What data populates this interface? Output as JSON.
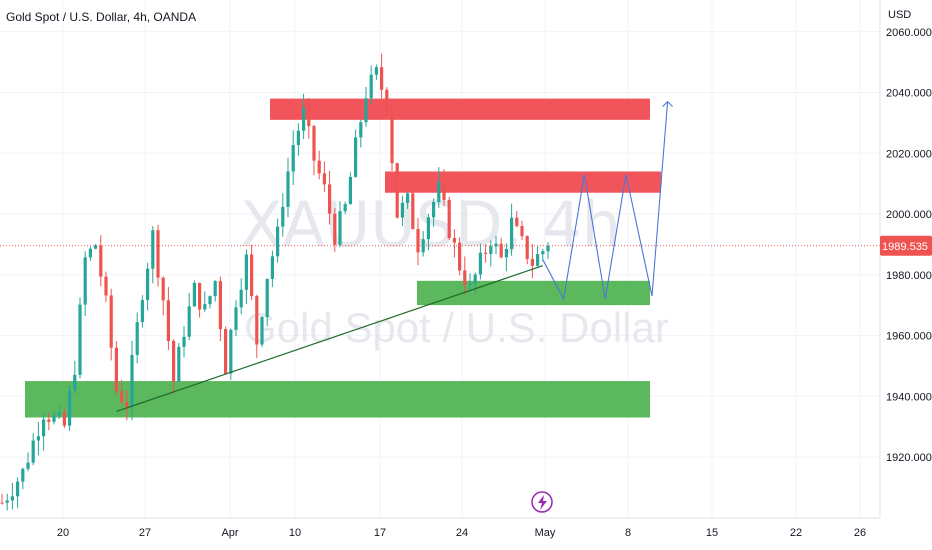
{
  "header": {
    "symbol_title": "Gold Spot / U.S. Dollar, 4h, OANDA",
    "currency": "USD"
  },
  "watermark": {
    "ticker": "XAUUSD, 4h",
    "name": "Gold Spot / U.S. Dollar"
  },
  "colors": {
    "up": "#26a69a",
    "down": "#ef5350",
    "supply_zone": "#f2545b",
    "demand_zone": "#5cb85c",
    "projection": "#4a78d6",
    "trendline": "#1e6b2a",
    "last_price_bg": "#ef5350"
  },
  "chart_data": {
    "type": "candlestick",
    "x_ticks": [
      "20",
      "27",
      "Apr",
      "10",
      "17",
      "24",
      "May",
      "8",
      "15",
      "22",
      "26"
    ],
    "y_ticks": [
      "2060.000",
      "2040.000",
      "2020.000",
      "2000.000",
      "1980.000",
      "1960.000",
      "1940.000",
      "1920.000"
    ],
    "ylim": [
      1900,
      2064
    ],
    "last_price": 1989.535,
    "last_price_label": "1989.535",
    "grid": true,
    "price_path": [
      [
        0,
        1905
      ],
      [
        4,
        1915
      ],
      [
        8,
        1935
      ],
      [
        12,
        1930
      ],
      [
        14,
        1950
      ],
      [
        16,
        1985
      ],
      [
        18,
        1990
      ],
      [
        20,
        1970
      ],
      [
        22,
        1942
      ],
      [
        24,
        1938
      ],
      [
        27,
        1975
      ],
      [
        29,
        1993
      ],
      [
        31,
        1972
      ],
      [
        33,
        1945
      ],
      [
        35,
        1962
      ],
      [
        37,
        1975
      ],
      [
        39,
        1968
      ],
      [
        41,
        1978
      ],
      [
        43,
        1950
      ],
      [
        45,
        1972
      ],
      [
        47,
        1985
      ],
      [
        49,
        1958
      ],
      [
        51,
        1980
      ],
      [
        53,
        1993
      ],
      [
        54,
        2005
      ],
      [
        56,
        2023
      ],
      [
        58,
        2033
      ],
      [
        60,
        2018
      ],
      [
        62,
        2008
      ],
      [
        64,
        1993
      ],
      [
        66,
        2002
      ],
      [
        68,
        2022
      ],
      [
        70,
        2040
      ],
      [
        72,
        2046
      ],
      [
        74,
        2037
      ],
      [
        76,
        2000
      ],
      [
        78,
        2004
      ],
      [
        80,
        1990
      ],
      [
        82,
        2000
      ],
      [
        84,
        2008
      ],
      [
        86,
        1995
      ],
      [
        88,
        1983
      ],
      [
        90,
        1975
      ],
      [
        92,
        1984
      ],
      [
        94,
        1992
      ],
      [
        96,
        1985
      ],
      [
        98,
        1997
      ],
      [
        100,
        1990
      ],
      [
        102,
        1984
      ],
      [
        104,
        1988
      ],
      [
        105,
        1990
      ]
    ],
    "zones": [
      {
        "type": "supply",
        "from": 2031,
        "to": 2038
      },
      {
        "type": "supply",
        "from": 2007,
        "to": 2014
      },
      {
        "type": "demand",
        "from": 1970,
        "to": 1978
      },
      {
        "type": "demand",
        "from": 1933,
        "to": 1945
      }
    ],
    "trendline": {
      "start": [
        22,
        1935
      ],
      "end": [
        104,
        1983
      ]
    },
    "projection_path": [
      [
        104,
        1985
      ],
      [
        108,
        1972
      ],
      [
        112,
        2013
      ],
      [
        116,
        1972
      ],
      [
        120,
        2013
      ],
      [
        125,
        1973
      ],
      [
        128,
        2037
      ]
    ]
  }
}
